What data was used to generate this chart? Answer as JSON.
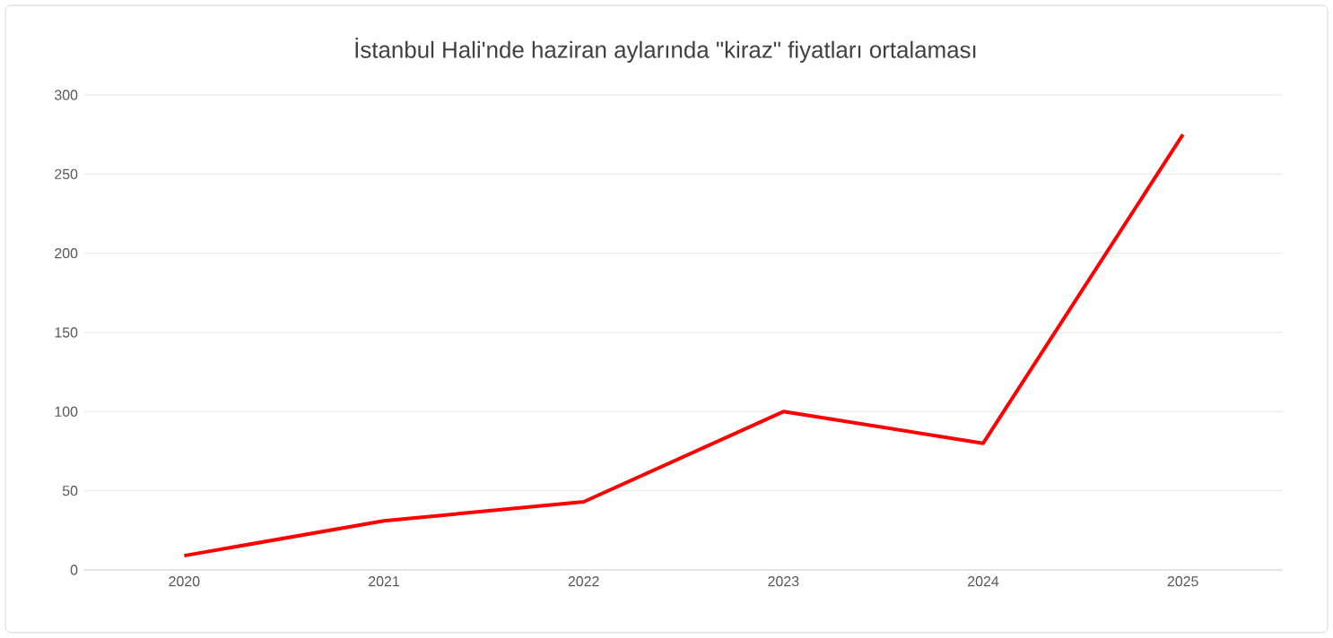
{
  "chart_data": {
    "type": "line",
    "title": "İstanbul Hali'nde haziran aylarında \"kiraz\" fiyatları ortalaması",
    "categories": [
      "2020",
      "2021",
      "2022",
      "2023",
      "2024",
      "2025"
    ],
    "series": [
      {
        "color": "#ff0000",
        "values": [
          9,
          31,
          43,
          100,
          80,
          275
        ]
      }
    ],
    "ylim": [
      0,
      300
    ],
    "yticks": [
      0,
      50,
      100,
      150,
      200,
      250,
      300
    ],
    "grid": "y",
    "legend": false,
    "marker": "none",
    "line_style": "solid"
  }
}
